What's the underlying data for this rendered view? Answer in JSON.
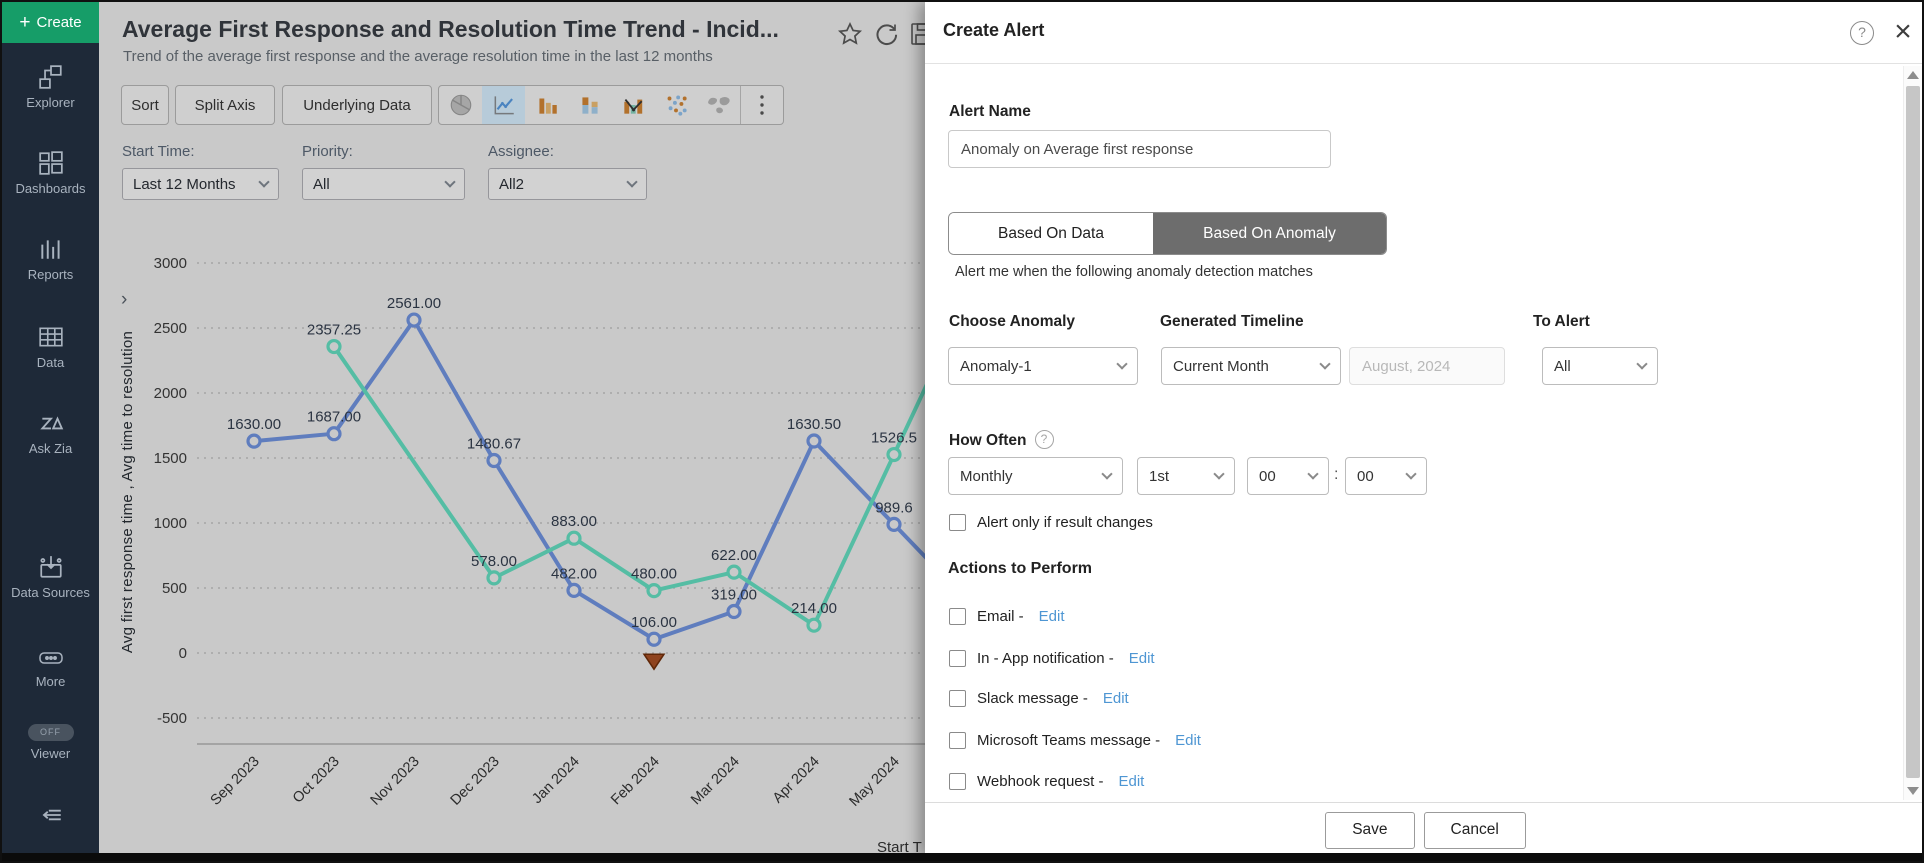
{
  "sidebar": {
    "create_label": "Create",
    "items": [
      {
        "icon": "explorer-icon",
        "label": "Explorer"
      },
      {
        "icon": "dashboards-icon",
        "label": "Dashboards"
      },
      {
        "icon": "reports-icon",
        "label": "Reports"
      },
      {
        "icon": "data-icon",
        "label": "Data"
      },
      {
        "icon": "ask-zia-icon",
        "label": "Ask Zia"
      },
      {
        "icon": "data-sources-icon",
        "label": "Data Sources"
      },
      {
        "icon": "more-icon",
        "label": "More"
      }
    ],
    "viewer": {
      "label": "Viewer",
      "toggle_state": "OFF"
    }
  },
  "report": {
    "title": "Average First Response and Resolution Time Trend - Incid...",
    "subtitle": "Trend of the average first response and the average resolution time in the last 12 months",
    "title_icons": [
      "star-icon",
      "refresh-icon",
      "save-icon"
    ],
    "toolbar": {
      "sort_label": "Sort",
      "split_axis_label": "Split Axis",
      "underlying_data_label": "Underlying Data",
      "chart_types": [
        "pie",
        "line",
        "bar",
        "stacked-bar",
        "bar-line",
        "scatter",
        "map"
      ],
      "selected_chart_type": "line",
      "more_icon": "kebab-menu-icon"
    },
    "filters": [
      {
        "label": "Start Time:",
        "value": "Last 12 Months"
      },
      {
        "label": "Priority:",
        "value": "All"
      },
      {
        "label": "Assignee:",
        "value": "All2"
      }
    ]
  },
  "chart_data": {
    "type": "line",
    "categories": [
      "Sep 2023",
      "Oct 2023",
      "Nov 2023",
      "Dec 2023",
      "Jan 2024",
      "Feb 2024",
      "Mar 2024",
      "Apr 2024",
      "May 2024"
    ],
    "series": [
      {
        "name": "Avg first response time",
        "color": "#5f7dbe",
        "values": [
          1630,
          1687,
          2561,
          1480.67,
          482,
          106,
          319,
          1630.5,
          989.6
        ],
        "labels": [
          "1630.00",
          "1687.00",
          "2561.00",
          "1480.67",
          "482.00",
          "106.00",
          "319.00",
          "1630.50",
          "989.6"
        ]
      },
      {
        "name": "Avg time to resolution",
        "color": "#55bda4",
        "values": [
          null,
          2357.25,
          null,
          578,
          883,
          480,
          622,
          214,
          1526.5
        ],
        "labels": [
          null,
          "2357.25",
          null,
          "578.00",
          "883.00",
          "480.00",
          "622.00",
          "214.00",
          "1526.5"
        ]
      }
    ],
    "title": "Average First Response and Resolution Time Trend - Incid...",
    "xlabel": "Start T",
    "ylabel": "Avg first response time , Avg time to resolution",
    "yticks": [
      3000,
      2500,
      2000,
      1500,
      1000,
      500,
      0,
      -500
    ],
    "ylim": [
      -500,
      3000
    ],
    "grid": "horizontal-dashed",
    "legend_position": "none",
    "anomaly_marker": {
      "category": "Feb 2024",
      "series": "Avg first response time",
      "value": 106,
      "shape": "triangle-down",
      "color": "#8f431e"
    }
  },
  "panel": {
    "title": "Create Alert",
    "help_icon": "?",
    "close_icon": "×",
    "alert_name": {
      "label": "Alert Name",
      "value": "Anomaly on Average first response"
    },
    "tabs": [
      {
        "label": "Based On Data",
        "active": false
      },
      {
        "label": "Based On Anomaly",
        "active": true
      }
    ],
    "tabs_caption": "Alert me when the following anomaly detection matches",
    "choose_anomaly": {
      "label": "Choose Anomaly",
      "value": "Anomaly-1"
    },
    "generated_timeline": {
      "label": "Generated Timeline",
      "value": "Current Month",
      "month_value": "August, 2024"
    },
    "to_alert": {
      "label": "To Alert",
      "value": "All"
    },
    "how_often": {
      "label": "How Often",
      "help_icon": "?",
      "frequency": "Monthly",
      "day": "1st",
      "hour": "00",
      "minute": "00",
      "separator": ":"
    },
    "alert_only_checkbox": "Alert only if result changes",
    "actions": {
      "heading": "Actions to Perform",
      "edit_label": "Edit",
      "items": [
        {
          "label": "Email -"
        },
        {
          "label": "In - App notification -"
        },
        {
          "label": "Slack message -"
        },
        {
          "label": "Microsoft Teams message -"
        },
        {
          "label": "Webhook request -"
        }
      ]
    },
    "footer": {
      "save_label": "Save",
      "cancel_label": "Cancel"
    }
  }
}
